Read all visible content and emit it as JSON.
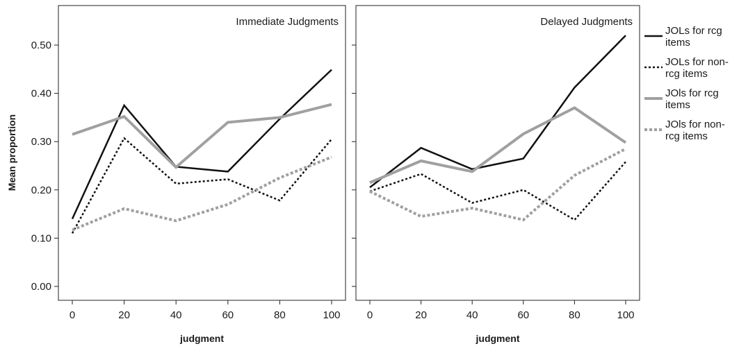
{
  "chart_data": [
    {
      "type": "line",
      "title": "Immediate Judgments",
      "xlabel": "judgment",
      "ylabel": "Mean proportion",
      "x": [
        0,
        20,
        40,
        60,
        80,
        100
      ],
      "x_ticks": [
        "0",
        "20",
        "40",
        "60",
        "80",
        "100"
      ],
      "y_ticks": [
        "0.00",
        "0.10",
        "0.20",
        "0.30",
        "0.40",
        "0.50"
      ],
      "ylim": [
        0,
        0.55
      ],
      "grid": false,
      "series": [
        {
          "name": "JOLs for rcg items",
          "style": "solid-black",
          "values": [
            0.14,
            0.375,
            0.248,
            0.238,
            0.347,
            0.449
          ]
        },
        {
          "name": "JOLs for non-rcg items",
          "style": "dotted-black",
          "values": [
            0.11,
            0.307,
            0.213,
            0.222,
            0.178,
            0.305
          ]
        },
        {
          "name": "JOls for rcg items",
          "style": "solid-gray",
          "values": [
            0.315,
            0.352,
            0.247,
            0.34,
            0.35,
            0.377
          ]
        },
        {
          "name": "JOls for non-rcg items",
          "style": "dotted-gray",
          "values": [
            0.117,
            0.161,
            0.136,
            0.17,
            0.225,
            0.268
          ]
        }
      ]
    },
    {
      "type": "line",
      "title": "Delayed Judgments",
      "xlabel": "judgment",
      "ylabel": "",
      "x": [
        0,
        20,
        40,
        60,
        80,
        100
      ],
      "x_ticks": [
        "0",
        "20",
        "40",
        "60",
        "80",
        "100"
      ],
      "ylim": [
        0,
        0.55
      ],
      "grid": false,
      "series": [
        {
          "name": "JOLs for rcg items",
          "style": "solid-black",
          "values": [
            0.205,
            0.287,
            0.243,
            0.265,
            0.412,
            0.52
          ]
        },
        {
          "name": "JOLs for non-rcg items",
          "style": "dotted-black",
          "values": [
            0.197,
            0.233,
            0.173,
            0.2,
            0.138,
            0.258
          ]
        },
        {
          "name": "JOls for rcg items",
          "style": "solid-gray",
          "values": [
            0.215,
            0.26,
            0.238,
            0.316,
            0.37,
            0.298
          ]
        },
        {
          "name": "JOls for non-rcg items",
          "style": "dotted-gray",
          "values": [
            0.197,
            0.145,
            0.162,
            0.138,
            0.23,
            0.285
          ]
        }
      ]
    }
  ],
  "legend": {
    "placement": "right",
    "items": [
      {
        "line1": "JOLs for rcg",
        "line2": "items",
        "style": "solid-black"
      },
      {
        "line1": "JOLs for non-",
        "line2": "rcg items",
        "style": "dotted-black"
      },
      {
        "line1": "JOls for rcg",
        "line2": "items",
        "style": "solid-gray"
      },
      {
        "line1": "JOls for non-",
        "line2": "rcg items",
        "style": "dotted-gray"
      }
    ]
  },
  "styles": {
    "solid-black": {
      "color": "#111111",
      "dashed": false
    },
    "dotted-black": {
      "color": "#111111",
      "dashed": true
    },
    "solid-gray": {
      "color": "#a0a0a0",
      "dashed": false
    },
    "dotted-gray": {
      "color": "#a0a0a0",
      "dashed": true
    }
  }
}
